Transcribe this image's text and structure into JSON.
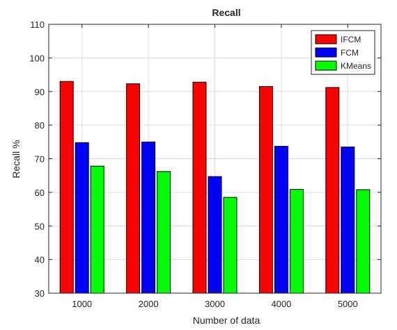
{
  "chart_data": {
    "type": "bar",
    "title": "Recall",
    "xlabel": "Number of data",
    "ylabel": "Recall %",
    "categories": [
      "1000",
      "2000",
      "3000",
      "4000",
      "5000"
    ],
    "ylim": [
      30,
      110
    ],
    "yticks": [
      30,
      40,
      50,
      60,
      70,
      80,
      90,
      100,
      110
    ],
    "grid": true,
    "legend_position": "top-right",
    "series": [
      {
        "name": "IFCM",
        "color": "#ff0000",
        "values": [
          93.0,
          92.3,
          92.8,
          91.5,
          91.2
        ]
      },
      {
        "name": "FCM",
        "color": "#0000ff",
        "values": [
          74.8,
          75.0,
          64.7,
          73.7,
          73.5
        ]
      },
      {
        "name": "KMeans",
        "color": "#00ff00",
        "values": [
          67.8,
          66.2,
          58.5,
          60.9,
          60.8
        ]
      }
    ]
  }
}
